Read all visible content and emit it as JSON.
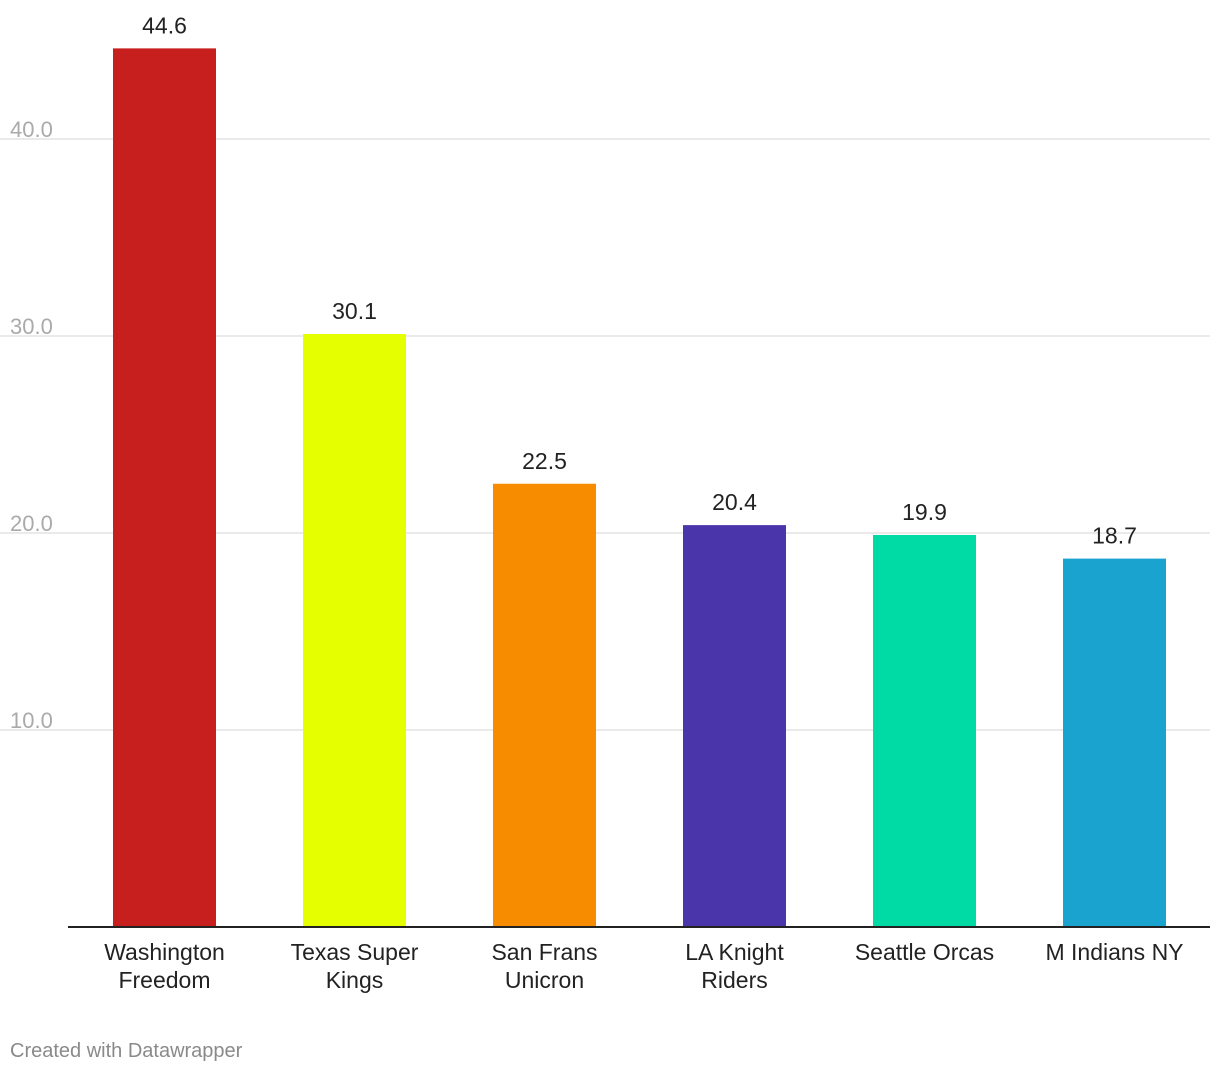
{
  "chart_data": {
    "type": "bar",
    "title": "",
    "xlabel": "",
    "ylabel": "",
    "categories": [
      [
        "Washington",
        "Freedom"
      ],
      [
        "Texas Super",
        "Kings"
      ],
      [
        "San Frans",
        "Unicron"
      ],
      [
        "LA Knight",
        "Riders"
      ],
      [
        "Seattle Orcas"
      ],
      [
        "M Indians NY"
      ]
    ],
    "values": [
      44.6,
      30.1,
      22.5,
      20.4,
      19.9,
      18.7
    ],
    "value_labels": [
      "44.6",
      "30.1",
      "22.5",
      "20.4",
      "19.9",
      "18.7"
    ],
    "colors": [
      "#c71e1e",
      "#e5ff00",
      "#f78c00",
      "#4a35ab",
      "#00dba6",
      "#1aa3cf"
    ],
    "ylim": [
      0,
      45
    ],
    "yticks": [
      10,
      20,
      30,
      40
    ],
    "ytick_labels": [
      "10.0",
      "20.0",
      "30.0",
      "40.0"
    ],
    "grid": true,
    "legend": "none"
  },
  "footer": {
    "credit": "Created with Datawrapper"
  }
}
